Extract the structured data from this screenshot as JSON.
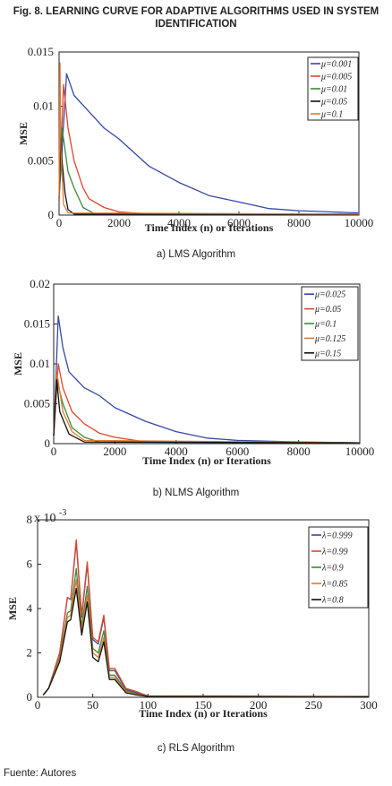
{
  "figure_title": "Fig. 8. LEARNING CURVE FOR ADAPTIVE ALGORITHMS USED IN SYSTEM IDENTIFICATION",
  "source": "Fuente: Autores",
  "series_colors": [
    "#3548a8",
    "#e0452a",
    "#3a8a3a",
    "#111111",
    "#e07a30"
  ],
  "chart_data": [
    {
      "type": "line",
      "caption": "a) LMS Algorithm",
      "xlabel": "Time Index (n) or Iterations",
      "ylabel": "MSE",
      "xlim": [
        0,
        10000
      ],
      "ylim": [
        0,
        0.015
      ],
      "xticks": [
        "0",
        "2000",
        "4000",
        "6000",
        "8000",
        "10000"
      ],
      "yticks": [
        "0",
        "0.005",
        "0.01",
        "0.015"
      ],
      "legend_position": "top-right",
      "grid": false,
      "series": [
        {
          "name": "μ=0.001",
          "color": "#3548a8",
          "x": [
            0,
            250,
            500,
            1000,
            1500,
            2000,
            3000,
            4000,
            5000,
            6000,
            7000,
            8000,
            9000,
            10000
          ],
          "values": [
            0.0015,
            0.013,
            0.011,
            0.0095,
            0.008,
            0.007,
            0.0045,
            0.003,
            0.0018,
            0.0012,
            0.0006,
            0.0004,
            0.0003,
            0.0002
          ]
        },
        {
          "name": "μ=0.005",
          "color": "#e0452a",
          "x": [
            0,
            150,
            300,
            500,
            800,
            1000,
            1500,
            2000,
            3000,
            10000
          ],
          "values": [
            0.0015,
            0.012,
            0.008,
            0.005,
            0.0025,
            0.0015,
            0.0007,
            0.0003,
            0.0001,
            0.0001
          ]
        },
        {
          "name": "μ=0.01",
          "color": "#3a8a3a",
          "x": [
            0,
            100,
            200,
            300,
            500,
            800,
            1200,
            10000
          ],
          "values": [
            0.0015,
            0.008,
            0.006,
            0.004,
            0.0025,
            0.0007,
            0.0001,
            0.0001
          ]
        },
        {
          "name": "μ=0.05",
          "color": "#111111",
          "x": [
            0,
            50,
            100,
            200,
            300,
            500,
            10000
          ],
          "values": [
            0.0015,
            0.008,
            0.005,
            0.002,
            0.0005,
            0.0001,
            0.0001
          ]
        },
        {
          "name": "μ=0.1",
          "color": "#e07a30",
          "x": [
            0,
            30,
            60,
            150,
            300,
            10000
          ],
          "values": [
            0.0015,
            0.014,
            0.006,
            0.001,
            0.0002,
            0.0001
          ]
        }
      ]
    },
    {
      "type": "line",
      "caption": "b) NLMS Algorithm",
      "xlabel": "Time Index (n) or Iterations",
      "ylabel": "MSE",
      "xlim": [
        0,
        10000
      ],
      "ylim": [
        0,
        0.02
      ],
      "xticks": [
        "0",
        "2000",
        "4000",
        "6000",
        "8000",
        "10000"
      ],
      "yticks": [
        "0",
        "0.005",
        "0.01",
        "0.015",
        "0.02"
      ],
      "legend_position": "top-right",
      "grid": false,
      "series": [
        {
          "name": "μ=0.025",
          "color": "#3548a8",
          "x": [
            0,
            150,
            300,
            500,
            1000,
            1500,
            2000,
            3000,
            4000,
            5000,
            6000,
            8000,
            10000
          ],
          "values": [
            0.001,
            0.016,
            0.012,
            0.009,
            0.007,
            0.006,
            0.0045,
            0.0028,
            0.0015,
            0.0007,
            0.0004,
            0.0002,
            0.0001
          ]
        },
        {
          "name": "μ=0.05",
          "color": "#e0452a",
          "x": [
            0,
            150,
            300,
            600,
            1000,
            1500,
            2000,
            3000,
            10000
          ],
          "values": [
            0.001,
            0.01,
            0.007,
            0.004,
            0.0025,
            0.0013,
            0.0008,
            0.0002,
            0.0001
          ]
        },
        {
          "name": "μ=0.1",
          "color": "#3a8a3a",
          "x": [
            0,
            100,
            300,
            600,
            1000,
            1500,
            10000
          ],
          "values": [
            0.001,
            0.008,
            0.005,
            0.002,
            0.0008,
            0.0002,
            0.0001
          ]
        },
        {
          "name": "μ=0.125",
          "color": "#e07a30",
          "x": [
            0,
            100,
            300,
            600,
            1000,
            10000
          ],
          "values": [
            0.001,
            0.009,
            0.004,
            0.0015,
            0.0004,
            0.0001
          ]
        },
        {
          "name": "μ=0.15",
          "color": "#111111",
          "x": [
            0,
            100,
            200,
            500,
            1000,
            10000
          ],
          "values": [
            0.001,
            0.008,
            0.004,
            0.0012,
            0.0002,
            0.0001
          ]
        }
      ]
    },
    {
      "type": "line",
      "caption": "c) RLS Algorithm",
      "xlabel": "Time Index (n) or Iterations",
      "ylabel": "MSE",
      "yscale_label": "x 10",
      "yscale_exp": "-3",
      "xlim": [
        0,
        300
      ],
      "ylim": [
        0,
        8
      ],
      "xticks": [
        "0",
        "50",
        "100",
        "150",
        "200",
        "250",
        "300"
      ],
      "yticks": [
        "0",
        "2",
        "4",
        "6",
        "8"
      ],
      "legend_position": "top-right",
      "grid": false,
      "series": [
        {
          "name": "λ=0.999",
          "color": "#3548a8",
          "x": [
            5,
            10,
            20,
            27,
            30,
            35,
            40,
            45,
            50,
            55,
            60,
            65,
            70,
            80,
            90,
            100,
            300
          ],
          "values": [
            0.1,
            0.4,
            2.0,
            4.5,
            4.4,
            7.0,
            3.6,
            6.0,
            2.6,
            2.4,
            3.6,
            1.2,
            1.2,
            0.35,
            0.2,
            0.05,
            0.03
          ]
        },
        {
          "name": "λ=0.99",
          "color": "#e0452a",
          "x": [
            5,
            10,
            20,
            27,
            30,
            35,
            40,
            45,
            50,
            55,
            60,
            65,
            70,
            80,
            90,
            100,
            300
          ],
          "values": [
            0.1,
            0.4,
            2.0,
            4.5,
            4.4,
            7.1,
            3.7,
            6.1,
            2.7,
            2.5,
            3.7,
            1.3,
            1.3,
            0.4,
            0.25,
            0.06,
            0.03
          ]
        },
        {
          "name": "λ=0.9",
          "color": "#3a8a3a",
          "x": [
            5,
            10,
            20,
            27,
            30,
            35,
            40,
            45,
            50,
            55,
            60,
            65,
            70,
            80,
            90,
            100,
            300
          ],
          "values": [
            0.1,
            0.4,
            1.8,
            3.8,
            3.9,
            5.8,
            3.2,
            5.0,
            2.2,
            2.0,
            3.0,
            1.0,
            1.0,
            0.3,
            0.15,
            0.05,
            0.03
          ]
        },
        {
          "name": "λ=0.85",
          "color": "#e07a30",
          "x": [
            5,
            10,
            20,
            27,
            30,
            35,
            40,
            45,
            50,
            55,
            60,
            65,
            70,
            80,
            90,
            100,
            300
          ],
          "values": [
            0.1,
            0.4,
            1.7,
            3.6,
            3.7,
            5.3,
            3.0,
            4.6,
            2.0,
            1.8,
            2.7,
            0.9,
            0.9,
            0.25,
            0.12,
            0.04,
            0.03
          ]
        },
        {
          "name": "λ=0.8",
          "color": "#111111",
          "x": [
            5,
            10,
            20,
            27,
            30,
            35,
            40,
            45,
            50,
            55,
            60,
            65,
            70,
            80,
            90,
            100,
            300
          ],
          "values": [
            0.1,
            0.4,
            1.6,
            3.4,
            3.5,
            4.9,
            2.8,
            4.3,
            1.8,
            1.6,
            2.5,
            0.8,
            0.8,
            0.2,
            0.1,
            0.04,
            0.03
          ]
        }
      ]
    }
  ]
}
